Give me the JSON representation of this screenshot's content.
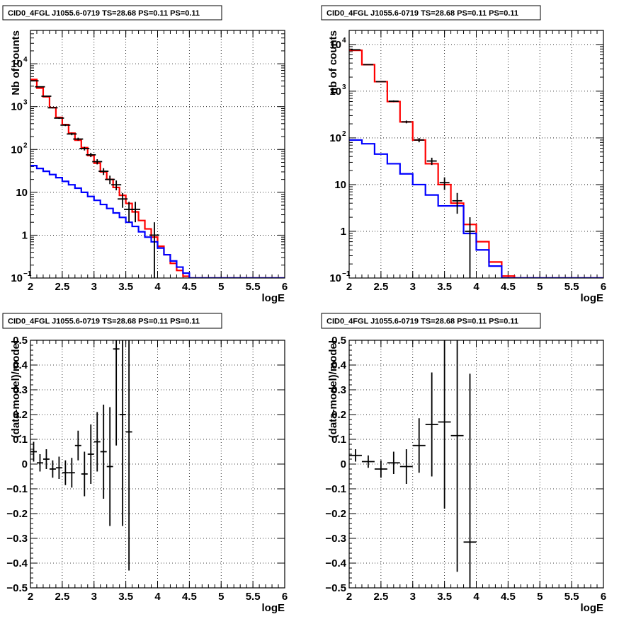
{
  "chart_data": [
    {
      "type": "line",
      "title": "CID0_4FGL J1055.6-0719 TS=28.68 PS=0.11 PS=0.11",
      "xlabel": "logE",
      "ylabel": "Nb of counts",
      "log_y": true,
      "xlim": [
        2,
        6
      ],
      "ylim": [
        0.1,
        60000
      ],
      "grid": true,
      "x_ticks": [
        2,
        2.5,
        3,
        3.5,
        4,
        4.5,
        5,
        5.5,
        6
      ],
      "x_tick_labels": [
        "2",
        "2.5",
        "3",
        "3.5",
        "4",
        "4.5",
        "5",
        "5.5",
        "6"
      ],
      "y_ticks": [
        {
          "value": 0.1,
          "base": "10",
          "exp": "−1"
        },
        {
          "value": 1,
          "base": "1",
          "exp": ""
        },
        {
          "value": 10,
          "base": "10",
          "exp": ""
        },
        {
          "value": 100,
          "base": "10",
          "exp": "2"
        },
        {
          "value": 1000,
          "base": "10",
          "exp": "3"
        },
        {
          "value": 10000,
          "base": "10",
          "exp": "4"
        }
      ],
      "bin_edges": [
        2.0,
        2.1,
        2.2,
        2.3,
        2.4,
        2.5,
        2.6,
        2.7,
        2.8,
        2.9,
        3.0,
        3.1,
        3.2,
        3.3,
        3.4,
        3.5,
        3.6,
        3.7,
        3.8,
        3.9,
        4.0,
        4.1,
        4.2,
        4.3,
        4.4,
        4.5,
        4.6,
        4.7,
        4.8,
        4.9,
        5.0,
        5.1,
        5.2,
        5.3,
        5.4,
        5.5,
        5.6,
        5.7,
        5.8,
        5.9,
        6.0
      ],
      "series": [
        {
          "color": "#ff0000",
          "kind": "step",
          "values": [
            4300,
            2700,
            1700,
            950,
            560,
            380,
            240,
            165,
            110,
            72,
            48,
            30,
            20,
            13,
            8.5,
            5.5,
            3.5,
            2.2,
            1.4,
            0.9,
            0.55,
            0.35,
            0.22,
            0.15,
            0.11,
            0.1,
            0.1,
            0.1,
            0.1,
            0.1,
            0.1,
            0.1,
            0.1,
            0.1,
            0.1,
            0.1,
            0.1,
            0.1,
            0.1,
            0.1
          ]
        },
        {
          "color": "#0000ff",
          "kind": "step",
          "values": [
            42,
            36,
            31,
            26,
            22,
            18,
            15,
            12.5,
            10,
            8,
            6.5,
            5.2,
            4.2,
            3.3,
            2.6,
            2.0,
            1.6,
            1.2,
            0.9,
            0.7,
            0.5,
            0.35,
            0.25,
            0.18,
            0.13,
            0.1,
            0.1,
            0.1,
            0.1,
            0.1,
            0.1,
            0.1,
            0.1,
            0.1,
            0.1,
            0.1,
            0.1,
            0.1,
            0.1,
            0.1
          ]
        },
        {
          "color": "#000000",
          "kind": "points",
          "points": [
            {
              "x": 2.05,
              "y": 4000
            },
            {
              "x": 2.15,
              "y": 2900
            },
            {
              "x": 2.25,
              "y": 1750
            },
            {
              "x": 2.35,
              "y": 940
            },
            {
              "x": 2.45,
              "y": 540
            },
            {
              "x": 2.55,
              "y": 370
            },
            {
              "x": 2.65,
              "y": 230
            },
            {
              "x": 2.75,
              "y": 175
            },
            {
              "x": 2.85,
              "y": 105
            },
            {
              "x": 2.95,
              "y": 75
            },
            {
              "x": 3.05,
              "y": 52
            },
            {
              "x": 3.15,
              "y": 31
            },
            {
              "x": 3.25,
              "y": 20
            },
            {
              "x": 3.35,
              "y": 15
            },
            {
              "x": 3.45,
              "y": 7
            },
            {
              "x": 3.55,
              "y": 4
            },
            {
              "x": 3.65,
              "y": 4
            },
            {
              "x": 3.95,
              "y": 1
            }
          ]
        }
      ]
    },
    {
      "type": "line",
      "title": "CID0_4FGL J1055.6-0719 TS=28.68 PS=0.11 PS=0.11",
      "xlabel": "logE",
      "ylabel": "nb of counts",
      "log_y": true,
      "xlim": [
        2,
        6
      ],
      "ylim": [
        0.1,
        20000
      ],
      "grid": true,
      "x_ticks": [
        2,
        2.5,
        3,
        3.5,
        4,
        4.5,
        5,
        5.5,
        6
      ],
      "x_tick_labels": [
        "2",
        "2.5",
        "3",
        "3.5",
        "4",
        "4.5",
        "5",
        "5.5",
        "6"
      ],
      "y_ticks": [
        {
          "value": 0.1,
          "base": "10",
          "exp": "−1"
        },
        {
          "value": 1,
          "base": "1",
          "exp": ""
        },
        {
          "value": 10,
          "base": "10",
          "exp": ""
        },
        {
          "value": 100,
          "base": "10",
          "exp": "2"
        },
        {
          "value": 1000,
          "base": "10",
          "exp": "3"
        },
        {
          "value": 10000,
          "base": "10",
          "exp": "4"
        }
      ],
      "bin_edges": [
        2.0,
        2.2,
        2.4,
        2.6,
        2.8,
        3.0,
        3.2,
        3.4,
        3.6,
        3.8,
        4.0,
        4.2,
        4.4,
        4.6,
        4.8,
        5.0,
        5.2,
        5.4,
        5.6,
        5.8,
        6.0
      ],
      "series": [
        {
          "color": "#ff0000",
          "kind": "step",
          "values": [
            7500,
            3700,
            1600,
            600,
            220,
            90,
            28,
            10,
            4,
            1.4,
            0.6,
            0.22,
            0.11,
            0.1,
            0.1,
            0.1,
            0.1,
            0.1,
            0.1,
            0.1
          ]
        },
        {
          "color": "#0000ff",
          "kind": "step",
          "values": [
            90,
            75,
            45,
            28,
            17,
            10,
            6,
            3.5,
            3.5,
            0.9,
            0.4,
            0.18,
            0.1,
            0.1,
            0.1,
            0.1,
            0.1,
            0.1,
            0.1,
            0.1
          ]
        },
        {
          "color": "#000000",
          "kind": "points",
          "points": [
            {
              "x": 2.1,
              "y": 7700
            },
            {
              "x": 2.3,
              "y": 3700
            },
            {
              "x": 2.5,
              "y": 1600
            },
            {
              "x": 2.7,
              "y": 610
            },
            {
              "x": 2.9,
              "y": 220
            },
            {
              "x": 3.1,
              "y": 90
            },
            {
              "x": 3.3,
              "y": 32
            },
            {
              "x": 3.5,
              "y": 11
            },
            {
              "x": 3.7,
              "y": 4.5
            },
            {
              "x": 3.9,
              "y": 1
            }
          ]
        }
      ]
    },
    {
      "type": "scatter",
      "title": "CID0_4FGL J1055.6-0719 TS=28.68 PS=0.11 PS=0.11",
      "xlabel": "logE",
      "ylabel": "(data-model)/model",
      "log_y": false,
      "xlim": [
        2,
        6
      ],
      "ylim": [
        -0.5,
        0.5
      ],
      "grid": true,
      "x_ticks": [
        2,
        2.5,
        3,
        3.5,
        4,
        4.5,
        5,
        5.5,
        6
      ],
      "x_tick_labels": [
        "2",
        "2.5",
        "3",
        "3.5",
        "4",
        "4.5",
        "5",
        "5.5",
        "6"
      ],
      "y_ticks": [
        {
          "value": -0.5,
          "label": "−0.5"
        },
        {
          "value": -0.4,
          "label": "−0.4"
        },
        {
          "value": -0.3,
          "label": "−0.3"
        },
        {
          "value": -0.2,
          "label": "−0.2"
        },
        {
          "value": -0.1,
          "label": "−0.1"
        },
        {
          "value": 0,
          "label": "0"
        },
        {
          "value": 0.1,
          "label": "0.1"
        },
        {
          "value": 0.2,
          "label": "0.2"
        },
        {
          "value": 0.3,
          "label": "0.3"
        },
        {
          "value": 0.4,
          "label": "0.4"
        },
        {
          "value": 0.5,
          "label": "0.5"
        }
      ],
      "series": [
        {
          "color": "#000000",
          "kind": "errorbars",
          "points": [
            {
              "x": 2.05,
              "y": 0.05,
              "err": 0.04,
              "xerr": 0.05
            },
            {
              "x": 2.15,
              "y": 0.005,
              "err": 0.035,
              "xerr": 0.05
            },
            {
              "x": 2.25,
              "y": 0.02,
              "err": 0.04,
              "xerr": 0.05
            },
            {
              "x": 2.35,
              "y": -0.02,
              "err": 0.035,
              "xerr": 0.05
            },
            {
              "x": 2.45,
              "y": -0.015,
              "err": 0.045,
              "xerr": 0.05
            },
            {
              "x": 2.55,
              "y": -0.035,
              "err": 0.05,
              "xerr": 0.05
            },
            {
              "x": 2.65,
              "y": -0.035,
              "err": 0.06,
              "xerr": 0.05
            },
            {
              "x": 2.75,
              "y": 0.075,
              "err": 0.06,
              "xerr": 0.05
            },
            {
              "x": 2.85,
              "y": -0.04,
              "err": 0.09,
              "xerr": 0.05
            },
            {
              "x": 2.95,
              "y": 0.04,
              "err": 0.12,
              "xerr": 0.05
            },
            {
              "x": 3.05,
              "y": 0.09,
              "err": 0.12,
              "xerr": 0.05
            },
            {
              "x": 3.15,
              "y": 0.05,
              "err": 0.19,
              "xerr": 0.05
            },
            {
              "x": 3.25,
              "y": -0.01,
              "err": 0.24,
              "xerr": 0.05
            },
            {
              "x": 3.35,
              "y": 0.465,
              "err": 0.39,
              "xerr": 0.05
            },
            {
              "x": 3.45,
              "y": 0.2,
              "err": 0.45,
              "xerr": 0.05
            },
            {
              "x": 3.55,
              "y": 0.13,
              "err": 0.56,
              "xerr": 0.05
            }
          ]
        }
      ]
    },
    {
      "type": "scatter",
      "title": "CID0_4FGL J1055.6-0719 TS=28.68 PS=0.11 PS=0.11",
      "xlabel": "logE",
      "ylabel": "(data-model)/model",
      "log_y": false,
      "xlim": [
        2,
        6
      ],
      "ylim": [
        -0.5,
        0.5
      ],
      "grid": true,
      "x_ticks": [
        2,
        2.5,
        3,
        3.5,
        4,
        4.5,
        5,
        5.5,
        6
      ],
      "x_tick_labels": [
        "2",
        "2.5",
        "3",
        "3.5",
        "4",
        "4.5",
        "5",
        "5.5",
        "6"
      ],
      "y_ticks": [
        {
          "value": -0.5,
          "label": "−0.5"
        },
        {
          "value": -0.4,
          "label": "−0.4"
        },
        {
          "value": -0.3,
          "label": "−0.3"
        },
        {
          "value": -0.2,
          "label": "−0.2"
        },
        {
          "value": -0.1,
          "label": "−0.1"
        },
        {
          "value": 0,
          "label": "0"
        },
        {
          "value": 0.1,
          "label": "0.1"
        },
        {
          "value": 0.2,
          "label": "0.2"
        },
        {
          "value": 0.3,
          "label": "0.3"
        },
        {
          "value": 0.4,
          "label": "0.4"
        },
        {
          "value": 0.5,
          "label": "0.5"
        }
      ],
      "series": [
        {
          "color": "#000000",
          "kind": "errorbars",
          "points": [
            {
              "x": 2.1,
              "y": 0.035,
              "err": 0.025,
              "xerr": 0.1
            },
            {
              "x": 2.3,
              "y": 0.01,
              "err": 0.025,
              "xerr": 0.1
            },
            {
              "x": 2.5,
              "y": -0.02,
              "err": 0.035,
              "xerr": 0.1
            },
            {
              "x": 2.7,
              "y": 0.005,
              "err": 0.045,
              "xerr": 0.1
            },
            {
              "x": 2.9,
              "y": -0.01,
              "err": 0.07,
              "xerr": 0.1
            },
            {
              "x": 3.1,
              "y": 0.075,
              "err": 0.11,
              "xerr": 0.1
            },
            {
              "x": 3.3,
              "y": 0.16,
              "err": 0.21,
              "xerr": 0.1
            },
            {
              "x": 3.5,
              "y": 0.17,
              "err": 0.35,
              "xerr": 0.1
            },
            {
              "x": 3.7,
              "y": 0.115,
              "err": 0.55,
              "xerr": 0.1
            },
            {
              "x": 3.9,
              "y": -0.315,
              "err": 0.68,
              "xerr": 0.1
            }
          ]
        }
      ]
    }
  ]
}
